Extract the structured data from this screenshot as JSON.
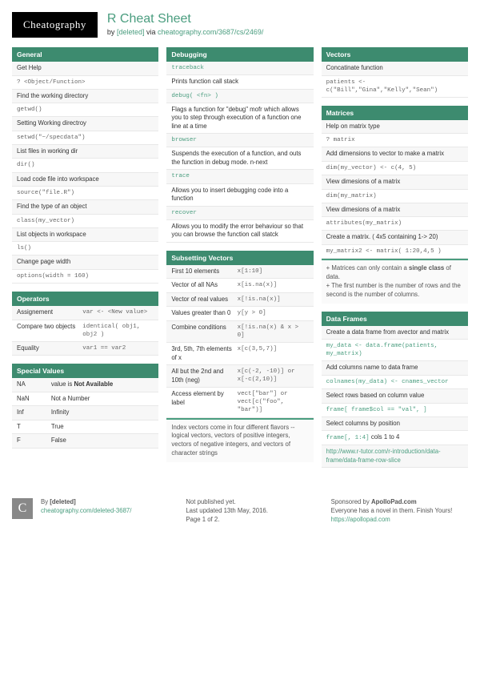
{
  "logo": "Cheatography",
  "title": "R Cheat Sheet",
  "byline_prefix": "by ",
  "author": "[deleted]",
  "byline_mid": " via ",
  "byline_link": "cheatography.com/3687/cs/2469/",
  "col1": {
    "general": {
      "title": "General",
      "rows": [
        [
          "Get Help",
          "? <Object/Function>"
        ],
        [
          "Find the working directory",
          "getwd()"
        ],
        [
          "Setting Working directroy",
          "setwd(\"~/specdata\")"
        ],
        [
          "List files in working dir",
          "dir()"
        ],
        [
          "Load code file into workspace",
          "source(\"file.R\")"
        ],
        [
          "Find the type of an object",
          "class(my_vector)"
        ],
        [
          "List objects in workspace",
          "ls()"
        ],
        [
          "Change page width",
          "options(width = 160)"
        ]
      ]
    },
    "operators": {
      "title": "Operators",
      "rows": [
        [
          "Assignement",
          "var <- <New value>"
        ],
        [
          "Compare two objects",
          "identical( obj1, obj2 )"
        ],
        [
          "Equality",
          "var1 == var2"
        ]
      ]
    },
    "special": {
      "title": "Special Values",
      "rows": [
        [
          "NA",
          "value is Not Available"
        ],
        [
          "NaN",
          "Not a Number"
        ],
        [
          "Inf",
          "Infinity"
        ],
        [
          "T",
          "True"
        ],
        [
          "F",
          "False"
        ]
      ]
    }
  },
  "col2": {
    "debugging": {
      "title": "Debugging",
      "items": [
        {
          "code": "traceback",
          "desc": "Prints function call stack"
        },
        {
          "code": "debug( <fn> )",
          "desc": "Flags a function for \"debug\" mofr which allows you to step through execution of a function one line at a time"
        },
        {
          "code": "browser",
          "desc": "Suspends the execution of a function, and outs the function in debug mode. n-next"
        },
        {
          "code": "trace",
          "desc": "Allows you to insert debugging code into a function"
        },
        {
          "code": "recover",
          "desc": "Allows you to modify the error behaviour so that you can browse the function call statck"
        }
      ]
    },
    "subsetting": {
      "title": "Subsetting Vectors",
      "rows": [
        [
          "First 10 elements",
          "x[1:10]"
        ],
        [
          "Vector of all NAs",
          "x[is.na(x)]"
        ],
        [
          "Vector of real values",
          "x[!is.na(x)]"
        ],
        [
          "Values greater than 0",
          "y[y > 0]"
        ],
        [
          "Combine conditions",
          "x[!is.na(x) & x > 0]"
        ],
        [
          "3rd, 5th, 7th elements of x",
          "x[c(3,5,7)]"
        ],
        [
          "All but the 2nd and 10th (neg)",
          "x[c(-2, -10)] or x[-c(2,10)]"
        ],
        [
          "Access element by label",
          "vect[\"bar\"] or vect[c(\"foo\", \"bar\")]"
        ]
      ],
      "note": "Index vectors come in four different flavors -- logical vectors, vectors of positive integers, vectors of negative integers, and vectors of character strings"
    }
  },
  "col3": {
    "vectors": {
      "title": "Vectors",
      "rows": [
        [
          "Concatinate function",
          "patients <- c(\"Bill\",\"Gina\",\"Kelly\",\"Sean\")"
        ]
      ]
    },
    "matrices": {
      "title": "Matrices",
      "rows": [
        [
          "Help on matrix type",
          "? matrix"
        ],
        [
          "Add dimensions to vector to make a matrix",
          "dim(my_vector) <- c(4, 5)"
        ],
        [
          "View dimesions of a matrix",
          "dim(my_matrix)"
        ],
        [
          "View dimesions of a matrix",
          "attributes(my_matrix)"
        ],
        [
          "Create a matrix. ( 4x5 containing 1-> 20)",
          "my_matrix2 <- matrix( 1:20,4,5 )"
        ]
      ],
      "note1_a": "+ Matrices can only contain a ",
      "note1_b": "single class",
      "note1_c": " of data.",
      "note2": "+ The first number is the number of rows and the second is the number of columns."
    },
    "dataframes": {
      "title": "Data Frames",
      "items": [
        {
          "desc": "Create a data frame from avector and matrix",
          "code": "my_data <- data.frame(patients, my_matrix)"
        },
        {
          "desc": "Add columns name to data frame",
          "code": "colnames(my_data) <- cnames_vector"
        },
        {
          "desc": "Select rows based on column value",
          "code": "frame[ frame$col == \"val\", ]"
        },
        {
          "desc": "Select columns by position",
          "code_prefix": "frame[, 1:4]",
          "code_suffix": " cols 1 to 4"
        }
      ],
      "link": "http://www.r-tutor.com/r-introduction/data-frame/data-frame-row-slice"
    }
  },
  "footer": {
    "f1_by": "By ",
    "f1_author": "[deleted]",
    "f1_link": "cheatography.com/deleted-3687/",
    "f2_l1": "Not published yet.",
    "f2_l2": "Last updated 13th May, 2016.",
    "f2_l3": "Page 1 of 2.",
    "f3_pre": "Sponsored by ",
    "f3_sponsor": "ApolloPad.com",
    "f3_l2": "Everyone has a novel in them. Finish Yours!",
    "f3_link": "https://apollopad.com"
  }
}
